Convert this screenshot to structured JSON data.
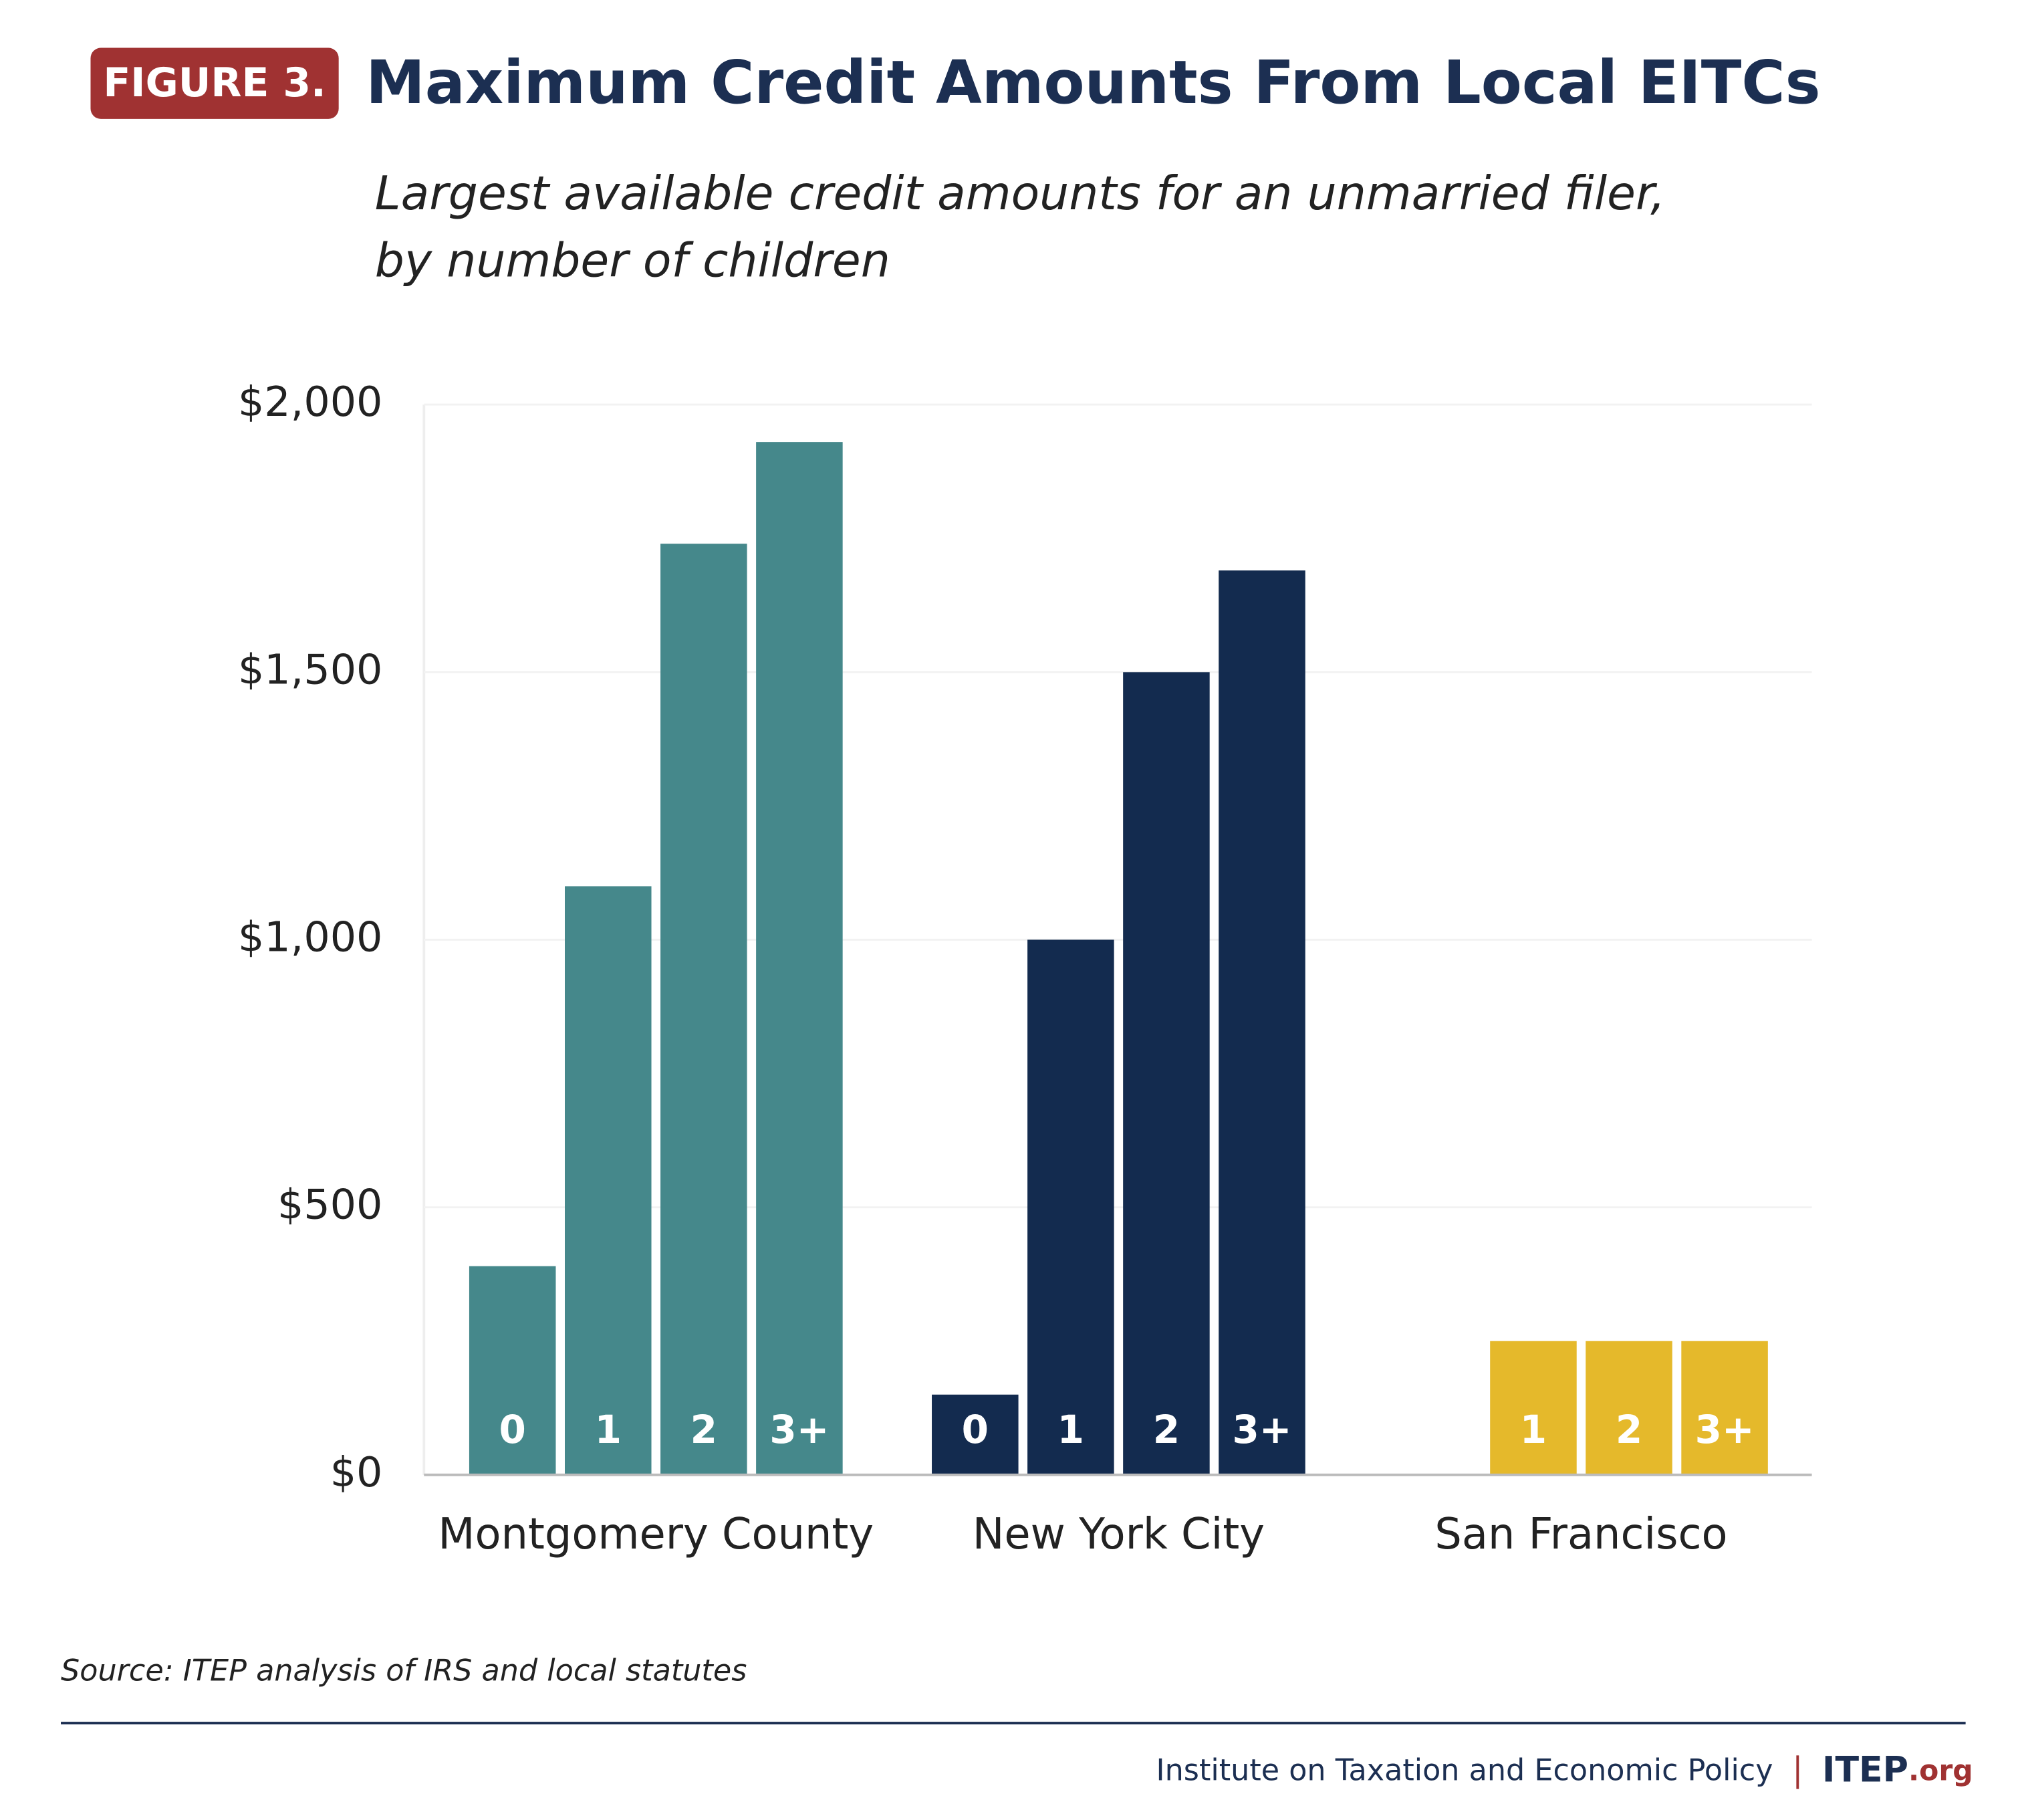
{
  "figure_label": "FIGURE 3.",
  "chart_data": {
    "type": "bar",
    "title": "Maximum Credit Amounts From Local EITCs",
    "subtitle": [
      "Largest available credit amounts for an unmarried filer,",
      "by number of children"
    ],
    "groups": [
      {
        "name": "Montgomery County",
        "color": "#45888b",
        "bars": [
          {
            "label": "0",
            "value": 390
          },
          {
            "label": "1",
            "value": 1100
          },
          {
            "label": "2",
            "value": 1740
          },
          {
            "label": "3+",
            "value": 1930
          }
        ]
      },
      {
        "name": "New York City",
        "color": "#132b4f",
        "bars": [
          {
            "label": "0",
            "value": 150
          },
          {
            "label": "1",
            "value": 1000
          },
          {
            "label": "2",
            "value": 1500
          },
          {
            "label": "3+",
            "value": 1690
          }
        ]
      },
      {
        "name": "San Francisco",
        "color": "#e5b92b",
        "bars": [
          {
            "label": "1",
            "value": 250
          },
          {
            "label": "2",
            "value": 250
          },
          {
            "label": "3+",
            "value": 250
          }
        ]
      }
    ],
    "ylim": [
      0,
      2000
    ],
    "yticks": [
      {
        "value": 0,
        "label": "$0"
      },
      {
        "value": 500,
        "label": "$500"
      },
      {
        "value": 1000,
        "label": "$1,000"
      },
      {
        "value": 1500,
        "label": "$1,500"
      },
      {
        "value": 2000,
        "label": "$2,000"
      }
    ],
    "grid": true,
    "source": "Source: ITEP analysis of IRS and local statutes"
  },
  "footer": {
    "organization": "Institute on Taxation and Economic Policy",
    "logo": "ITEP",
    "logo_suffix": ".org"
  }
}
